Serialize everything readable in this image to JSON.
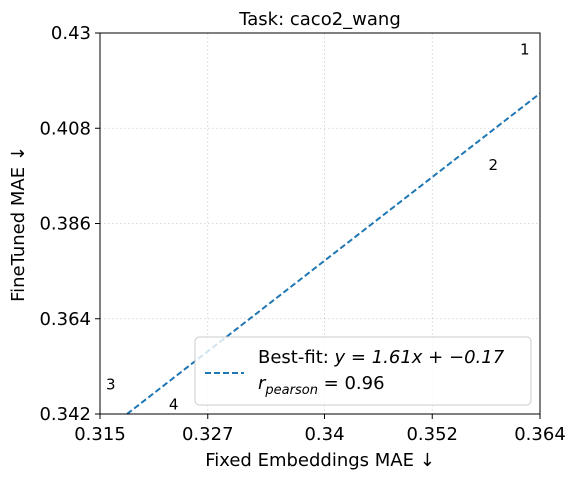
{
  "chart_data": {
    "type": "scatter",
    "title": "Task: caco2_wang",
    "xlabel": "Fixed Embeddings MAE ↓",
    "ylabel": "FineTuned MAE ↓",
    "xlim": [
      0.315,
      0.364
    ],
    "ylim": [
      0.342,
      0.43
    ],
    "xticks": [
      0.315,
      0.327,
      0.34,
      0.352,
      0.364
    ],
    "xtick_labels": [
      "0.315",
      "0.327",
      "0.34",
      "0.352",
      "0.364"
    ],
    "yticks": [
      0.342,
      0.364,
      0.386,
      0.408,
      0.43
    ],
    "ytick_labels": [
      "0.342",
      "0.364",
      "0.386",
      "0.408",
      "0.43"
    ],
    "grid": true,
    "points": [
      {
        "label": "1",
        "x": 0.3623,
        "y": 0.4262
      },
      {
        "label": "2",
        "x": 0.3588,
        "y": 0.3995
      },
      {
        "label": "3",
        "x": 0.3162,
        "y": 0.3488
      },
      {
        "label": "4",
        "x": 0.3232,
        "y": 0.3442
      }
    ],
    "fit_line": {
      "slope": 1.61,
      "intercept": -0.17,
      "color": "#1f77b4",
      "style": "dashed"
    },
    "legend": {
      "placement": "lower right",
      "line1_prefix": "Best-fit: ",
      "line1_formula": "y = 1.61x + −0.17",
      "line2_symbol": "r",
      "line2_subscript": "pearson",
      "line2_value": " = 0.96"
    }
  }
}
